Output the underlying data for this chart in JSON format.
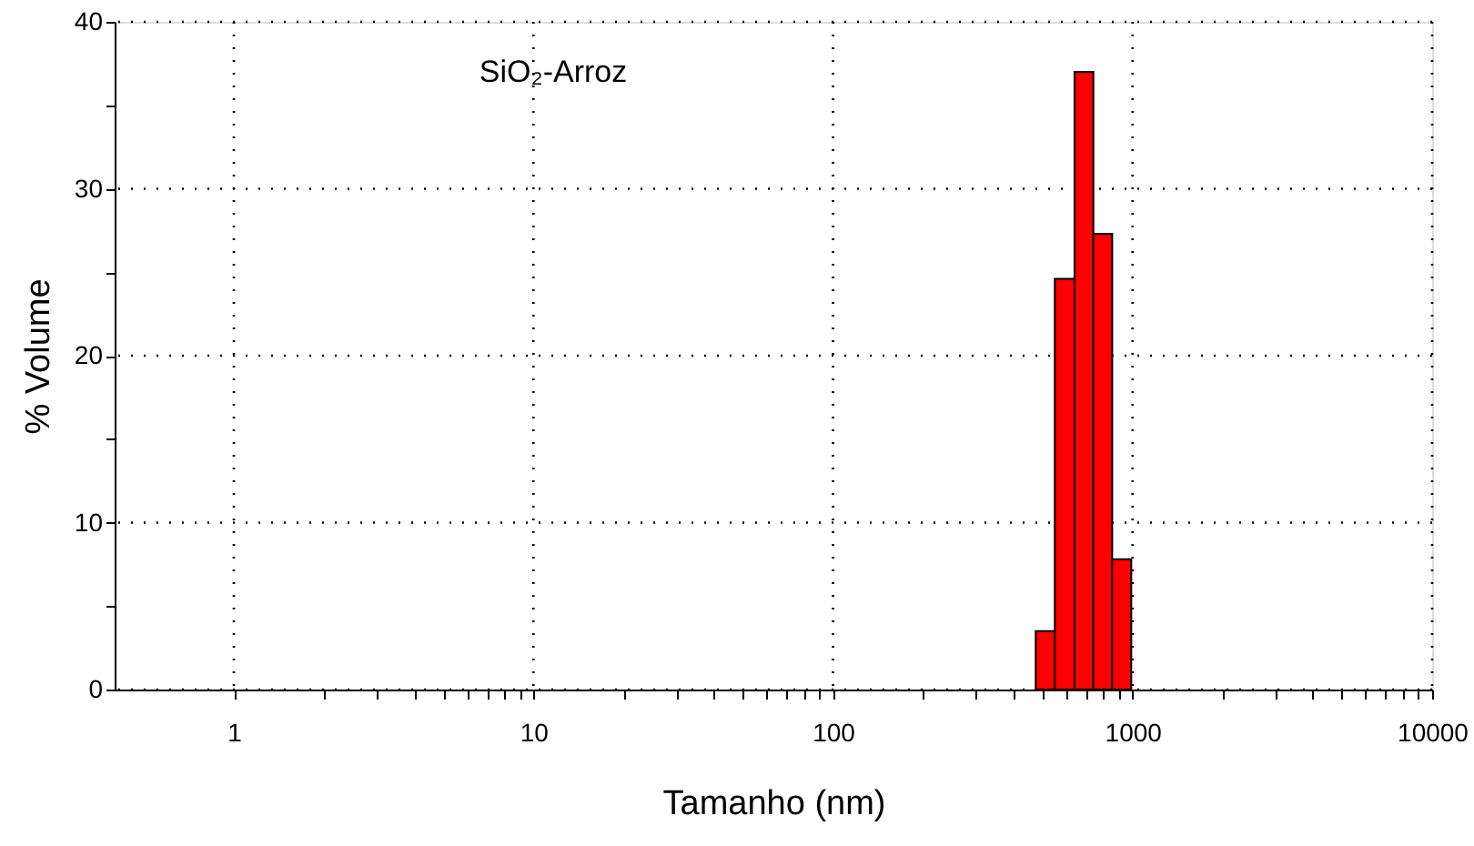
{
  "chart_data": {
    "type": "histogram",
    "xlabel": "Tamanho (nm)",
    "ylabel": "% Volume",
    "annotations": [
      "SiO₂-Arroz"
    ],
    "bins": [
      475,
      550,
      640,
      740,
      855,
      990
    ],
    "values": [
      3.5,
      24.6,
      37.0,
      27.3,
      7.8
    ],
    "color": "#ff0000",
    "log": "x",
    "grid": true,
    "xlim": [
      0.4,
      10000
    ],
    "xticks": [
      1,
      {
        "value": 2,
        "label": null
      },
      {
        "value": 3,
        "label": null
      },
      {
        "value": 4,
        "label": null
      },
      {
        "value": 5,
        "label": null
      },
      {
        "value": 6,
        "label": null
      },
      {
        "value": 7,
        "label": null
      },
      {
        "value": 8,
        "label": null
      },
      {
        "value": 9,
        "label": null
      },
      10,
      {
        "value": 20,
        "label": null
      },
      {
        "value": 30,
        "label": null
      },
      {
        "value": 40,
        "label": null
      },
      {
        "value": 50,
        "label": null
      },
      {
        "value": 60,
        "label": null
      },
      {
        "value": 70,
        "label": null
      },
      {
        "value": 80,
        "label": null
      },
      {
        "value": 90,
        "label": null
      },
      100,
      {
        "value": 200,
        "label": null
      },
      {
        "value": 300,
        "label": null
      },
      {
        "value": 400,
        "label": null
      },
      {
        "value": 500,
        "label": null
      },
      {
        "value": 600,
        "label": null
      },
      {
        "value": 700,
        "label": null
      },
      {
        "value": 800,
        "label": null
      },
      {
        "value": 900,
        "label": null
      },
      1000,
      {
        "value": 2000,
        "label": null
      },
      {
        "value": 3000,
        "label": null
      },
      {
        "value": 4000,
        "label": null
      },
      {
        "value": 5000,
        "label": null
      },
      {
        "value": 6000,
        "label": null
      },
      {
        "value": 7000,
        "label": null
      },
      {
        "value": 8000,
        "label": null
      },
      {
        "value": 9000,
        "label": null
      },
      10000
    ],
    "ylim": [
      0,
      40
    ],
    "yticks": [
      0,
      {
        "value": 5,
        "label": null
      },
      10,
      {
        "value": 15,
        "label": null
      },
      20,
      {
        "value": 25,
        "label": null
      },
      30,
      {
        "value": 35,
        "label": null
      },
      40
    ]
  }
}
